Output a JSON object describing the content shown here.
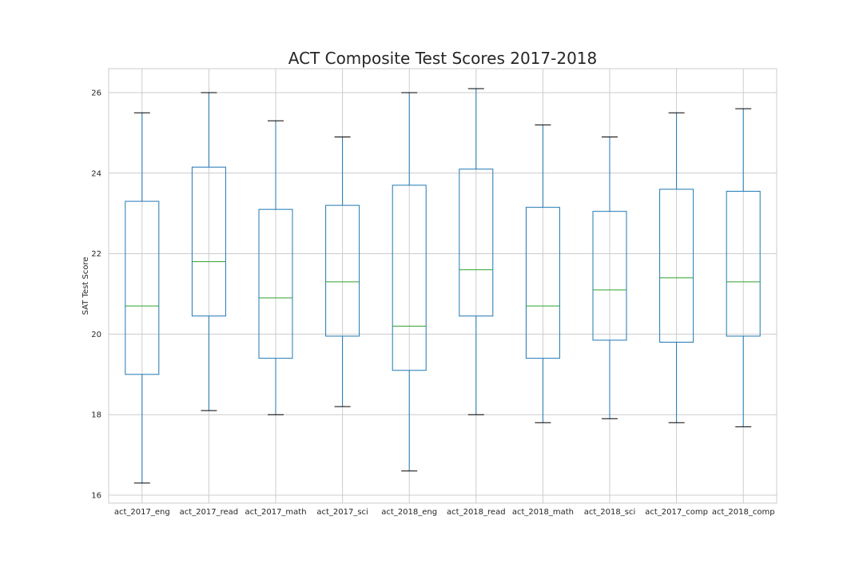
{
  "chart_data": {
    "type": "box",
    "title": "ACT Composite Test Scores 2017-2018",
    "xlabel": "",
    "ylabel": "SAT Test Score",
    "ylim": [
      15.8,
      26.6
    ],
    "yticks": [
      16,
      18,
      20,
      22,
      24,
      26
    ],
    "grid": true,
    "categories": [
      "act_2017_eng",
      "act_2017_read",
      "act_2017_math",
      "act_2017_sci",
      "act_2018_eng",
      "act_2018_read",
      "act_2018_math",
      "act_2018_sci",
      "act_2017_comp",
      "act_2018_comp"
    ],
    "boxes": [
      {
        "min": 16.3,
        "q1": 19.0,
        "median": 20.7,
        "q3": 23.3,
        "max": 25.5
      },
      {
        "min": 18.1,
        "q1": 20.45,
        "median": 21.8,
        "q3": 24.15,
        "max": 26.0
      },
      {
        "min": 18.0,
        "q1": 19.4,
        "median": 20.9,
        "q3": 23.1,
        "max": 25.3
      },
      {
        "min": 18.2,
        "q1": 19.95,
        "median": 21.3,
        "q3": 23.2,
        "max": 24.9
      },
      {
        "min": 16.6,
        "q1": 19.1,
        "median": 20.2,
        "q3": 23.7,
        "max": 26.0
      },
      {
        "min": 18.0,
        "q1": 20.45,
        "median": 21.6,
        "q3": 24.1,
        "max": 26.1
      },
      {
        "min": 17.8,
        "q1": 19.4,
        "median": 20.7,
        "q3": 23.15,
        "max": 25.2
      },
      {
        "min": 17.9,
        "q1": 19.85,
        "median": 21.1,
        "q3": 23.05,
        "max": 24.9
      },
      {
        "min": 17.8,
        "q1": 19.8,
        "median": 21.4,
        "q3": 23.6,
        "max": 25.5
      },
      {
        "min": 17.7,
        "q1": 19.95,
        "median": 21.3,
        "q3": 23.55,
        "max": 25.6
      }
    ],
    "colors": {
      "box": "#1f77b4",
      "median": "#2ca02c",
      "cap": "#000000",
      "grid": "#cccccc",
      "spine": "#cccccc"
    }
  }
}
